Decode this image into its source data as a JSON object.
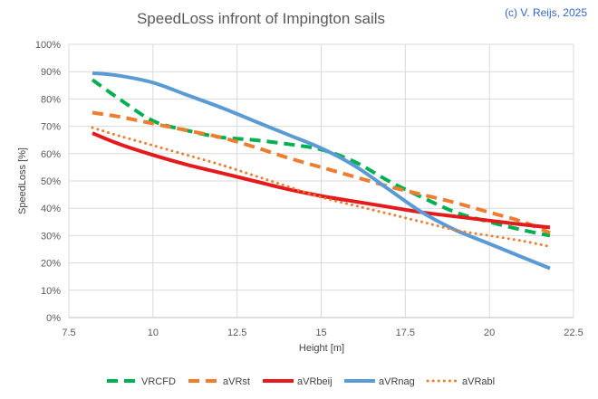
{
  "chart_data": {
    "type": "line",
    "title": "SpeedLoss infront of Impington sails",
    "annotation": "(c) V. Reijs, 2025",
    "xlabel": "Height [m]",
    "ylabel": "SpeedLoss [%]",
    "xlim": [
      7.5,
      22.5
    ],
    "ylim": [
      0,
      100
    ],
    "x_ticks": [
      "7.5",
      "10",
      "12.5",
      "15",
      "17.5",
      "20",
      "22.5"
    ],
    "y_ticks": [
      "0%",
      "10%",
      "20%",
      "30%",
      "40%",
      "50%",
      "60%",
      "70%",
      "80%",
      "90%",
      "100%"
    ],
    "grid": true,
    "legend_position": "bottom",
    "series": [
      {
        "name": "VRCFD",
        "color": "#00b050",
        "style": "dashed",
        "points": [
          [
            8.2,
            87
          ],
          [
            9,
            80
          ],
          [
            10,
            72
          ],
          [
            11,
            68.5
          ],
          [
            12,
            66
          ],
          [
            13,
            65
          ],
          [
            14,
            63.5
          ],
          [
            15,
            61.5
          ],
          [
            16,
            57
          ],
          [
            17,
            50
          ],
          [
            18,
            44
          ],
          [
            19,
            38.5
          ],
          [
            20,
            35
          ],
          [
            21,
            32
          ],
          [
            21.8,
            30
          ]
        ]
      },
      {
        "name": "aVRst",
        "color": "#ed7d31",
        "style": "dashed",
        "points": [
          [
            8.2,
            75
          ],
          [
            9,
            73.5
          ],
          [
            10,
            71
          ],
          [
            11,
            68.5
          ],
          [
            12,
            66
          ],
          [
            13,
            62.5
          ],
          [
            14,
            58.5
          ],
          [
            15,
            55
          ],
          [
            16,
            51.5
          ],
          [
            17,
            48
          ],
          [
            18,
            45
          ],
          [
            19,
            42
          ],
          [
            20,
            38.5
          ],
          [
            21,
            35
          ],
          [
            21.8,
            31
          ]
        ]
      },
      {
        "name": "aVRbeij",
        "color": "#e41a1c",
        "style": "solid",
        "points": [
          [
            8.2,
            67.5
          ],
          [
            9,
            63.5
          ],
          [
            10,
            59.5
          ],
          [
            11,
            56
          ],
          [
            12,
            53
          ],
          [
            13,
            50
          ],
          [
            14,
            47
          ],
          [
            15,
            44.5
          ],
          [
            16,
            42.5
          ],
          [
            17,
            40.5
          ],
          [
            18,
            38.5
          ],
          [
            19,
            37
          ],
          [
            20,
            35.5
          ],
          [
            21,
            34
          ],
          [
            21.8,
            33
          ]
        ]
      },
      {
        "name": "aVRnag",
        "color": "#5b9bd5",
        "style": "solid",
        "points": [
          [
            8.2,
            89.5
          ],
          [
            9,
            88.5
          ],
          [
            10,
            86
          ],
          [
            11,
            81.5
          ],
          [
            12,
            77
          ],
          [
            13,
            72
          ],
          [
            14,
            67
          ],
          [
            15,
            62
          ],
          [
            16,
            55.5
          ],
          [
            17,
            47
          ],
          [
            18,
            38.5
          ],
          [
            19,
            32
          ],
          [
            20,
            27
          ],
          [
            21,
            22
          ],
          [
            21.8,
            18
          ]
        ]
      },
      {
        "name": "aVRabl",
        "color": "#ed7d31",
        "style": "dotted",
        "points": [
          [
            8.2,
            69.5
          ],
          [
            9,
            66.5
          ],
          [
            10,
            63
          ],
          [
            11,
            59.5
          ],
          [
            12,
            56
          ],
          [
            13,
            52
          ],
          [
            14,
            48
          ],
          [
            15,
            44
          ],
          [
            16,
            41
          ],
          [
            17,
            38
          ],
          [
            18,
            35
          ],
          [
            19,
            32
          ],
          [
            20,
            30
          ],
          [
            21,
            28
          ],
          [
            21.8,
            26
          ]
        ]
      }
    ]
  }
}
